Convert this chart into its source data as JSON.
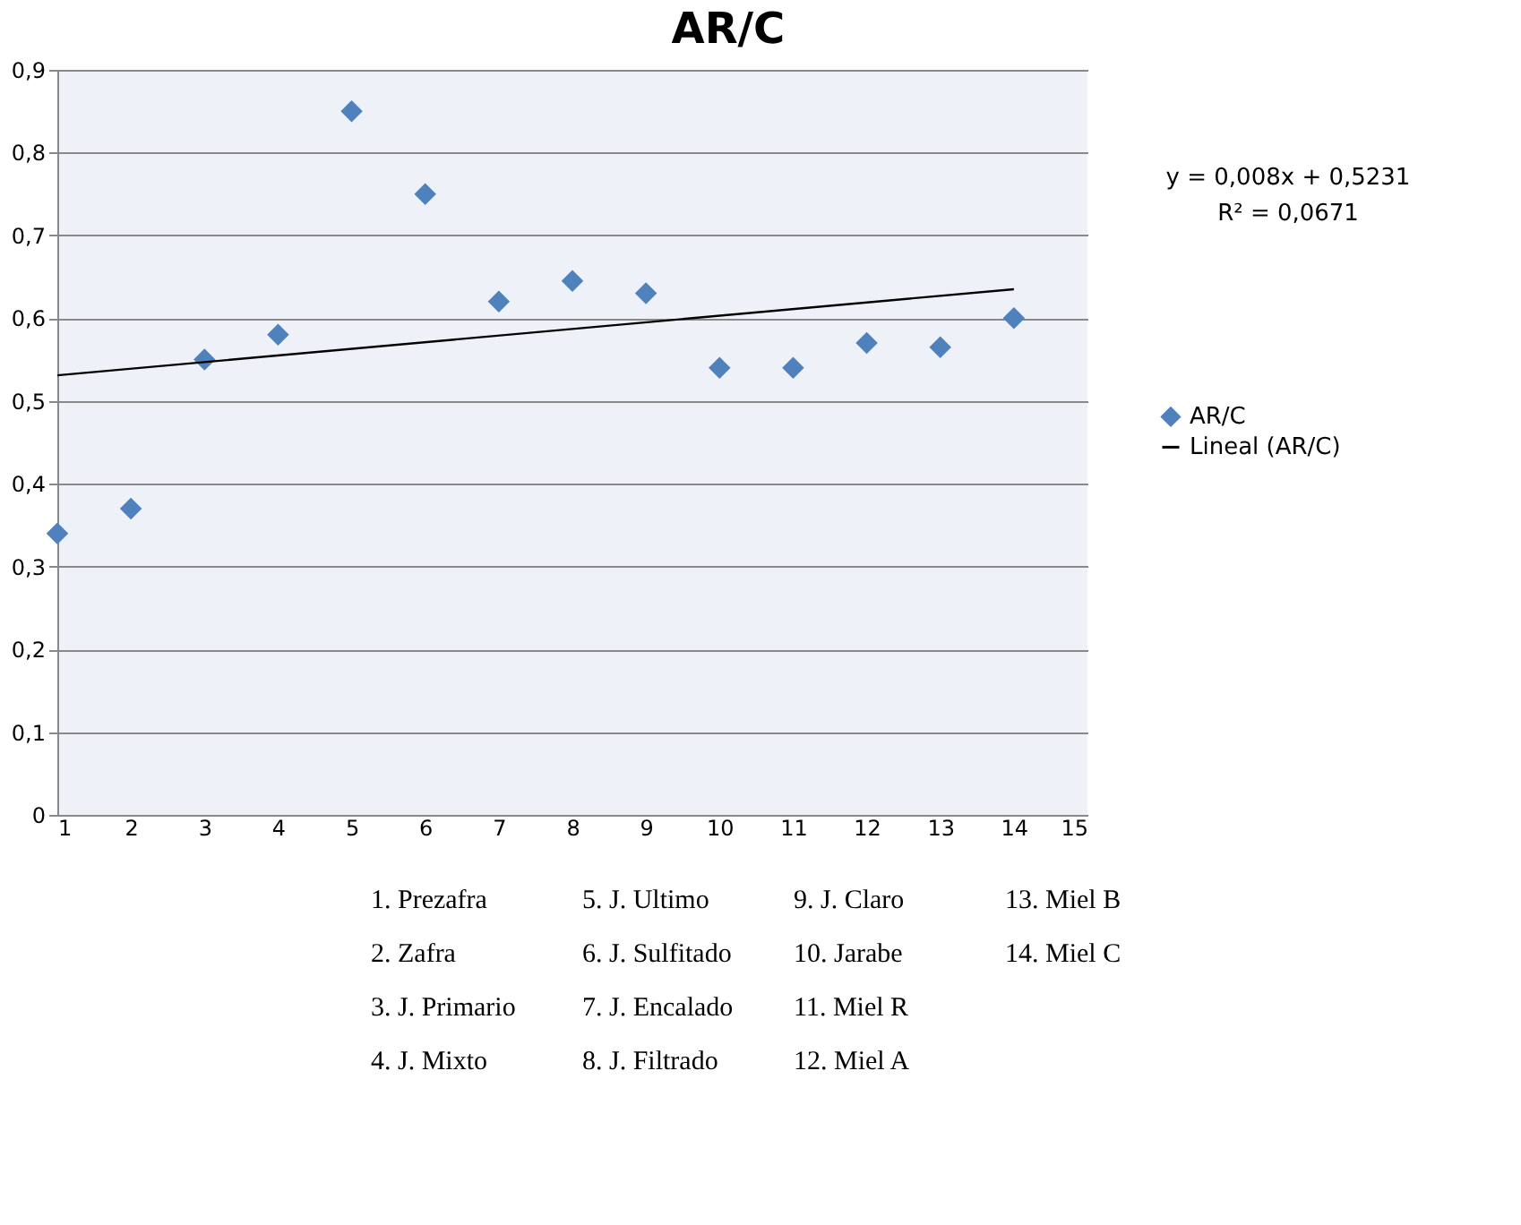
{
  "chart_data": {
    "type": "scatter",
    "title": "AR/C",
    "x": [
      1,
      2,
      3,
      4,
      5,
      6,
      7,
      8,
      9,
      10,
      11,
      12,
      13,
      14
    ],
    "series": [
      {
        "name": "AR/C",
        "color": "#4f81bd",
        "marker": "diamond",
        "values": [
          0.34,
          0.37,
          0.55,
          0.58,
          0.85,
          0.75,
          0.62,
          0.645,
          0.63,
          0.54,
          0.54,
          0.57,
          0.565,
          0.6
        ]
      },
      {
        "name": "Lineal (AR/C)",
        "type": "line",
        "line_style": "solid",
        "color": "#000000",
        "x": [
          1,
          14
        ],
        "values": [
          0.531,
          0.635
        ]
      }
    ],
    "xlim": [
      1,
      15
    ],
    "xticks": [
      1,
      2,
      3,
      4,
      5,
      6,
      7,
      8,
      9,
      10,
      11,
      12,
      13,
      14,
      15
    ],
    "ylim": [
      0,
      0.9
    ],
    "yticks": [
      0,
      {
        "value": 0.1,
        "label": "0,1"
      },
      {
        "value": 0.2,
        "label": "0,2"
      },
      {
        "value": 0.3,
        "label": "0,3"
      },
      {
        "value": 0.4,
        "label": "0,4"
      },
      {
        "value": 0.5,
        "label": "0,5"
      },
      {
        "value": 0.6,
        "label": "0,6"
      },
      {
        "value": 0.7,
        "label": "0,7"
      },
      {
        "value": 0.8,
        "label": "0,8"
      },
      {
        "value": 0.9,
        "label": "0,9"
      }
    ],
    "grid": "y",
    "legend": "right",
    "annotations": [
      "y = 0,008x + 0,5231",
      "R² = 0,0671",
      "1. Prezafra",
      "2. Zafra",
      "3. J. Primario",
      "4. J. Mixto",
      "5. J. Ultimo",
      "6. J. Sulfitado",
      "7. J. Encalado",
      "8. J. Filtrado",
      "9. J. Claro",
      "10. Jarabe",
      "11. Miel R",
      "12. Miel A",
      "13. Miel B",
      "14. Miel C"
    ]
  }
}
